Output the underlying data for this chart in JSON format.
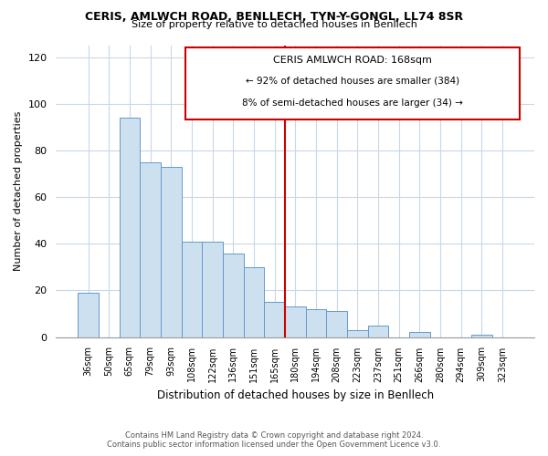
{
  "title": "CERIS, AMLWCH ROAD, BENLLECH, TYN-Y-GONGL, LL74 8SR",
  "subtitle": "Size of property relative to detached houses in Benllech",
  "xlabel": "Distribution of detached houses by size in Benllech",
  "ylabel": "Number of detached properties",
  "bin_labels": [
    "36sqm",
    "50sqm",
    "65sqm",
    "79sqm",
    "93sqm",
    "108sqm",
    "122sqm",
    "136sqm",
    "151sqm",
    "165sqm",
    "180sqm",
    "194sqm",
    "208sqm",
    "223sqm",
    "237sqm",
    "251sqm",
    "266sqm",
    "280sqm",
    "294sqm",
    "309sqm",
    "323sqm"
  ],
  "bar_heights": [
    19,
    0,
    94,
    75,
    73,
    41,
    41,
    36,
    30,
    15,
    13,
    12,
    11,
    3,
    5,
    0,
    2,
    0,
    0,
    1,
    0
  ],
  "bar_color": "#cce0f0",
  "bar_edge_color": "#6699cc",
  "vline_color": "#cc0000",
  "annotation_title": "CERIS AMLWCH ROAD: 168sqm",
  "annotation_line1": "← 92% of detached houses are smaller (384)",
  "annotation_line2": "8% of semi-detached houses are larger (34) →",
  "annotation_box_color": "#cc0000",
  "footer_line1": "Contains HM Land Registry data © Crown copyright and database right 2024.",
  "footer_line2": "Contains public sector information licensed under the Open Government Licence v3.0.",
  "ylim": [
    0,
    125
  ],
  "background_color": "#ffffff",
  "grid_color": "#c8d8e8"
}
